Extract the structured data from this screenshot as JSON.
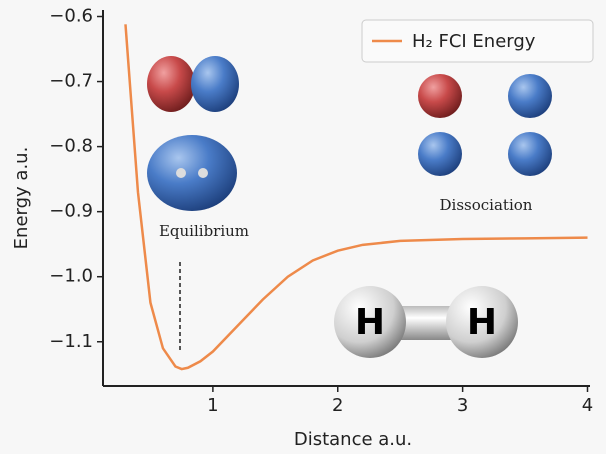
{
  "chart_data": {
    "type": "line",
    "x_label": "Distance a.u.",
    "y_label": "Energy a.u.",
    "x": [
      0.3,
      0.4,
      0.5,
      0.6,
      0.7,
      0.75,
      0.8,
      0.9,
      1.0,
      1.2,
      1.4,
      1.6,
      1.8,
      2.0,
      2.2,
      2.5,
      3.0,
      3.5,
      4.0
    ],
    "series": [
      {
        "name": "H₂ FCI Energy",
        "color": "#ee8a4a",
        "values": [
          -0.612,
          -0.87,
          -1.04,
          -1.11,
          -1.138,
          -1.142,
          -1.14,
          -1.13,
          -1.115,
          -1.075,
          -1.035,
          -1.0,
          -0.975,
          -0.96,
          -0.951,
          -0.945,
          -0.942,
          -0.941,
          -0.94
        ]
      }
    ],
    "xlim": [
      0.12,
      4.02
    ],
    "ylim": [
      -1.168,
      -0.59
    ],
    "xticks": [
      1,
      2,
      3,
      4
    ],
    "yticks": [
      {
        "value": -1.1,
        "label": "−1.1"
      },
      {
        "value": -1.0,
        "label": "−1.0"
      },
      {
        "value": -0.9,
        "label": "−0.9"
      },
      {
        "value": -0.8,
        "label": "−0.8"
      },
      {
        "value": -0.7,
        "label": "−0.7"
      },
      {
        "value": -0.6,
        "label": "−0.6"
      }
    ],
    "annotations": [
      "Equilibrium",
      "Dissociation"
    ],
    "legend": "upper right"
  },
  "illustration": {
    "atoms": [
      "H",
      "H"
    ]
  }
}
